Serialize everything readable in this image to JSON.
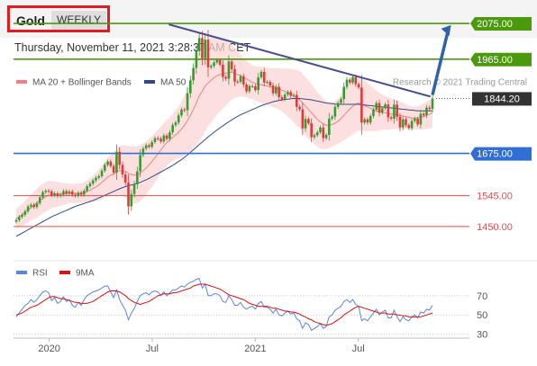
{
  "header": {
    "title": "Gold",
    "period": "WEEKLY"
  },
  "timestamp": "Thursday, November 11, 2021 3:28:37 AM CET",
  "colors": {
    "resistance": "#4a9a0c",
    "pivot": "#2f6fd6",
    "support": "#e84c4c",
    "last_price": "#333333",
    "ma20": "#f08080",
    "ma50": "#2e4a8a",
    "rsi": "#5b84e0",
    "rsi_ma": "#dd1111",
    "up_candle": "#3a9a32",
    "down_candle": "#e23a3a"
  },
  "chart_data": [
    {
      "type": "candlestick",
      "source_label": "Research © 2021 Trading Central",
      "legend": [
        {
          "name": "MA 20 + Bollinger Bands",
          "color": "#f08080"
        },
        {
          "name": "MA 50",
          "color": "#2e4a8a"
        }
      ],
      "ylim": [
        1400,
        2100
      ],
      "x_ticks": [
        "2020",
        "Jul",
        "2021",
        "Jul"
      ],
      "levels": [
        {
          "value": 2075.0,
          "label": "2075.00",
          "kind": "resistance"
        },
        {
          "value": 1965.0,
          "label": "1965.00",
          "kind": "resistance"
        },
        {
          "value": 1844.2,
          "label": "1844.20",
          "kind": "last"
        },
        {
          "value": 1675.0,
          "label": "1675.00",
          "kind": "pivot"
        },
        {
          "value": 1545.0,
          "label": "1545.00",
          "kind": "support"
        },
        {
          "value": 1450.0,
          "label": "1450.00",
          "kind": "support"
        }
      ],
      "trendline": {
        "from": [
          2020.58,
          2072
        ],
        "to": [
          2021.85,
          1850
        ]
      },
      "projection": {
        "from": [
          2021.86,
          1855
        ],
        "to": [
          2021.95,
          2070
        ]
      },
      "series": [
        {
          "name": "Gold",
          "close": [
            1470,
            1480,
            1486,
            1497,
            1512,
            1517,
            1510,
            1522,
            1540,
            1556,
            1560,
            1558,
            1546,
            1552,
            1544,
            1548,
            1559,
            1552,
            1558,
            1548,
            1545,
            1554,
            1548,
            1560,
            1574,
            1582,
            1592,
            1600,
            1605,
            1622,
            1640,
            1650,
            1636,
            1616,
            1680,
            1640,
            1610,
            1585,
            1512,
            1550,
            1580,
            1620,
            1670,
            1690,
            1700,
            1695,
            1710,
            1722,
            1720,
            1712,
            1730,
            1720,
            1740,
            1762,
            1770,
            1792,
            1810,
            1808,
            1860,
            1900,
            1938,
            1990,
            2030,
            1968,
            2025,
            1940,
            1944,
            1955,
            1962,
            1948,
            1910,
            1905,
            1958,
            1934,
            1896,
            1895,
            1912,
            1887,
            1866,
            1882,
            1882,
            1870,
            1909,
            1926,
            1893,
            1895,
            1884,
            1860,
            1880,
            1848,
            1841,
            1856,
            1864,
            1852,
            1855,
            1818,
            1811,
            1752,
            1781,
            1768,
            1725,
            1731,
            1740,
            1755,
            1722,
            1732,
            1782,
            1788,
            1818,
            1830,
            1842,
            1880,
            1902,
            1893,
            1910,
            1888,
            1878,
            1770,
            1780,
            1770,
            1790,
            1810,
            1830,
            1800,
            1814,
            1826,
            1786,
            1782,
            1825,
            1788,
            1755,
            1780,
            1762,
            1753,
            1775,
            1782,
            1764,
            1797,
            1792,
            1816,
            1812,
            1844
          ]
        }
      ],
      "ma20": [
        1475,
        1480,
        1486,
        1493,
        1500,
        1508,
        1515,
        1522,
        1530,
        1536,
        1542,
        1546,
        1548,
        1549,
        1549,
        1550,
        1550,
        1551,
        1552,
        1552,
        1552,
        1553,
        1553,
        1555,
        1558,
        1562,
        1567,
        1572,
        1578,
        1586,
        1594,
        1602,
        1608,
        1612,
        1618,
        1622,
        1622,
        1620,
        1614,
        1610,
        1608,
        1610,
        1614,
        1622,
        1630,
        1640,
        1650,
        1662,
        1674,
        1686,
        1698,
        1708,
        1716,
        1724,
        1732,
        1740,
        1750,
        1762,
        1776,
        1792,
        1810,
        1830,
        1852,
        1866,
        1882,
        1892,
        1900,
        1908,
        1914,
        1918,
        1920,
        1922,
        1924,
        1924,
        1922,
        1918,
        1914,
        1910,
        1904,
        1898,
        1894,
        1890,
        1888,
        1886,
        1884,
        1882,
        1880,
        1878,
        1876,
        1874,
        1870,
        1866,
        1862,
        1858,
        1852,
        1846,
        1840,
        1830,
        1820,
        1810,
        1800,
        1790,
        1780,
        1772,
        1766,
        1762,
        1762,
        1764,
        1768,
        1774,
        1782,
        1792,
        1802,
        1812,
        1820,
        1826,
        1830,
        1826,
        1822,
        1818,
        1814,
        1810,
        1806,
        1804,
        1802,
        1800,
        1798,
        1796,
        1796,
        1794,
        1792,
        1790,
        1788,
        1786,
        1784,
        1784,
        1784,
        1786,
        1788,
        1792,
        1796,
        1800
      ],
      "bb_width": [
        30,
        32,
        34,
        36,
        38,
        40,
        42,
        44,
        46,
        46,
        46,
        44,
        42,
        40,
        38,
        36,
        34,
        32,
        30,
        30,
        30,
        30,
        30,
        32,
        34,
        36,
        40,
        44,
        48,
        52,
        56,
        60,
        62,
        66,
        70,
        74,
        78,
        80,
        84,
        86,
        88,
        88,
        86,
        84,
        82,
        80,
        78,
        76,
        74,
        72,
        70,
        70,
        70,
        72,
        76,
        80,
        86,
        92,
        100,
        110,
        120,
        130,
        140,
        140,
        138,
        134,
        130,
        126,
        120,
        114,
        108,
        100,
        92,
        84,
        76,
        70,
        64,
        60,
        56,
        54,
        52,
        52,
        54,
        56,
        58,
        58,
        58,
        60,
        62,
        64,
        66,
        70,
        74,
        78,
        82,
        86,
        88,
        90,
        90,
        90,
        88,
        86,
        84,
        82,
        78,
        74,
        70,
        68,
        68,
        70,
        72,
        76,
        80,
        84,
        86,
        86,
        84,
        82,
        78,
        74,
        70,
        66,
        62,
        58,
        54,
        52,
        50,
        48,
        46,
        44,
        42,
        40,
        38,
        36,
        36,
        36,
        36,
        38,
        40,
        42,
        44,
        46
      ],
      "ma50": [
        1420,
        1425,
        1430,
        1435,
        1440,
        1445,
        1450,
        1455,
        1460,
        1465,
        1470,
        1475,
        1480,
        1484,
        1488,
        1492,
        1496,
        1500,
        1504,
        1508,
        1512,
        1515,
        1518,
        1521,
        1524,
        1527,
        1530,
        1534,
        1538,
        1542,
        1546,
        1550,
        1554,
        1558,
        1562,
        1566,
        1570,
        1573,
        1576,
        1578,
        1580,
        1583,
        1586,
        1590,
        1594,
        1598,
        1603,
        1608,
        1613,
        1618,
        1623,
        1628,
        1633,
        1638,
        1644,
        1650,
        1656,
        1663,
        1670,
        1678,
        1686,
        1694,
        1702,
        1710,
        1718,
        1726,
        1733,
        1740,
        1747,
        1754,
        1760,
        1766,
        1772,
        1778,
        1784,
        1789,
        1794,
        1798,
        1802,
        1806,
        1810,
        1814,
        1818,
        1822,
        1825,
        1828,
        1831,
        1834,
        1836,
        1838,
        1840,
        1841,
        1842,
        1843,
        1844,
        1844,
        1844,
        1843,
        1842,
        1841,
        1840,
        1838,
        1836,
        1834,
        1832,
        1830,
        1829,
        1828,
        1827,
        1826,
        1826,
        1826,
        1826,
        1826,
        1826,
        1826,
        1826,
        1825,
        1824,
        1823,
        1822,
        1821,
        1820,
        1819,
        1818,
        1817,
        1816,
        1815,
        1814,
        1813,
        1812,
        1811,
        1810,
        1809,
        1808,
        1807,
        1806,
        1806,
        1806,
        1806,
        1806,
        1806
      ]
    },
    {
      "type": "line",
      "legend": [
        {
          "name": "RSI",
          "color": "#5b84e0"
        },
        {
          "name": "9MA",
          "color": "#dd1111"
        }
      ],
      "ylim": [
        25,
        82
      ],
      "y_ticks": [
        70,
        50,
        30
      ],
      "series": [
        {
          "name": "RSI",
          "values": [
            48,
            52,
            56,
            60,
            62,
            66,
            63,
            66,
            70,
            74,
            75,
            73,
            65,
            68,
            62,
            64,
            69,
            64,
            66,
            60,
            58,
            63,
            60,
            66,
            70,
            72,
            74,
            75,
            76,
            78,
            80,
            80,
            74,
            68,
            76,
            66,
            60,
            55,
            45,
            52,
            57,
            64,
            70,
            72,
            73,
            71,
            74,
            75,
            74,
            70,
            74,
            70,
            73,
            76,
            76,
            78,
            80,
            79,
            82,
            84,
            85,
            87,
            88,
            78,
            82,
            70,
            70,
            72,
            72,
            70,
            64,
            63,
            70,
            66,
            60,
            60,
            63,
            58,
            56,
            58,
            59,
            56,
            62,
            64,
            58,
            58,
            56,
            52,
            56,
            50,
            49,
            52,
            54,
            51,
            52,
            46,
            44,
            36,
            42,
            40,
            34,
            36,
            38,
            41,
            36,
            38,
            48,
            50,
            55,
            57,
            59,
            64,
            66,
            63,
            66,
            61,
            59,
            44,
            46,
            44,
            48,
            52,
            56,
            50,
            53,
            55,
            47,
            47,
            55,
            48,
            43,
            48,
            45,
            44,
            48,
            50,
            47,
            53,
            52,
            56,
            55,
            60
          ]
        },
        {
          "name": "9MA",
          "values": [
            50,
            51,
            52,
            54,
            56,
            58,
            59,
            60,
            62,
            64,
            66,
            68,
            69,
            69,
            68,
            67,
            67,
            66,
            65,
            64,
            63,
            63,
            62,
            62,
            62,
            63,
            64,
            66,
            68,
            70,
            72,
            74,
            75,
            75,
            75,
            74,
            72,
            70,
            67,
            65,
            63,
            62,
            61,
            62,
            63,
            64,
            66,
            68,
            70,
            71,
            72,
            72,
            72,
            73,
            73,
            74,
            75,
            76,
            77,
            78,
            80,
            81,
            82,
            82,
            82,
            81,
            80,
            79,
            78,
            77,
            75,
            73,
            71,
            70,
            69,
            68,
            67,
            66,
            64,
            62,
            61,
            60,
            59,
            59,
            59,
            59,
            58,
            57,
            57,
            56,
            55,
            54,
            54,
            53,
            53,
            52,
            51,
            49,
            48,
            46,
            45,
            43,
            42,
            41,
            40,
            39,
            40,
            41,
            43,
            45,
            47,
            50,
            52,
            54,
            56,
            58,
            59,
            58,
            57,
            56,
            55,
            54,
            53,
            52,
            52,
            52,
            51,
            51,
            51,
            50,
            50,
            49,
            49,
            48,
            48,
            48,
            48,
            48,
            49,
            50,
            51,
            52
          ]
        }
      ]
    }
  ]
}
